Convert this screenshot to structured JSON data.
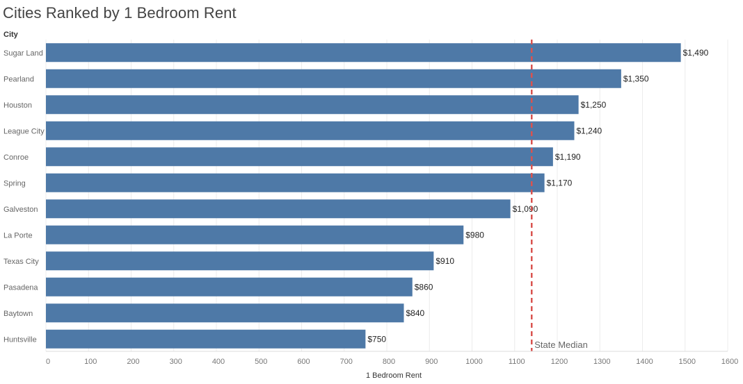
{
  "chart_data": {
    "type": "bar",
    "orientation": "horizontal",
    "title": "Cities Ranked by 1 Bedroom Rent",
    "category_header": "City",
    "xlabel": "1 Bedroom Rent",
    "xlim": [
      0,
      1600
    ],
    "xticks": [
      0,
      100,
      200,
      300,
      400,
      500,
      600,
      700,
      800,
      900,
      1000,
      1100,
      1200,
      1300,
      1400,
      1500,
      1600
    ],
    "categories": [
      "Sugar Land",
      "Pearland",
      "Houston",
      "League City",
      "Conroe",
      "Spring",
      "Galveston",
      "La Porte",
      "Texas City",
      "Pasadena",
      "Baytown",
      "Huntsville"
    ],
    "values": [
      1490,
      1350,
      1250,
      1240,
      1190,
      1170,
      1090,
      980,
      910,
      860,
      840,
      750
    ],
    "value_labels": [
      "$1,490",
      "$1,350",
      "$1,250",
      "$1,240",
      "$1,190",
      "$1,170",
      "$1,090",
      "$980",
      "$910",
      "$860",
      "$840",
      "$750"
    ],
    "reference_line": {
      "label": "State Median",
      "value": 1140,
      "color": "#d9534f",
      "style": "dashed"
    },
    "bar_color": "#4e79a7",
    "grid": "vertical",
    "legend": "none"
  }
}
